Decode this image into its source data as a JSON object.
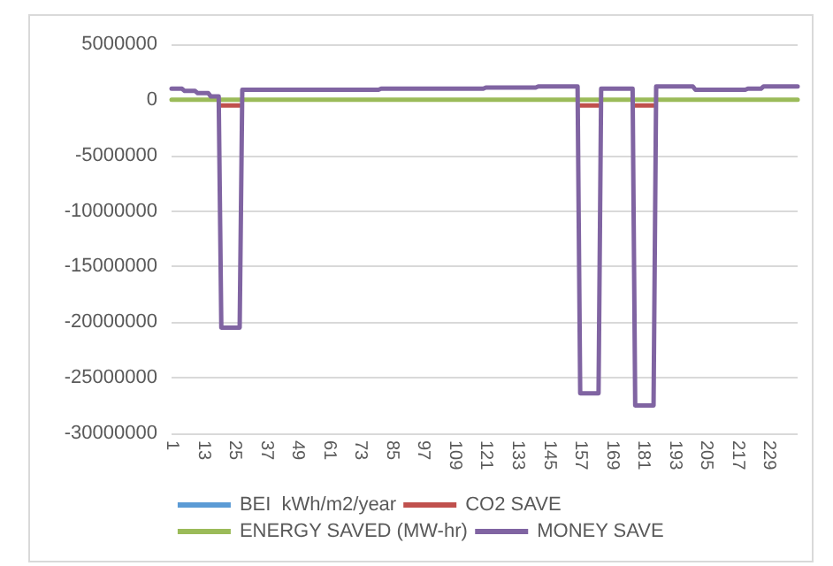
{
  "chart_data": {
    "type": "line",
    "categories": [
      "1",
      null,
      null,
      null,
      null,
      null,
      null,
      null,
      null,
      null,
      null,
      null,
      "13",
      null,
      null,
      null,
      null,
      null,
      null,
      null,
      null,
      null,
      null,
      null,
      "25",
      null,
      null,
      null,
      null,
      null,
      null,
      null,
      null,
      null,
      null,
      null,
      "37",
      null,
      null,
      null,
      null,
      null,
      null,
      null,
      null,
      null,
      null,
      null,
      "49",
      null,
      null,
      null,
      null,
      null,
      null,
      null,
      null,
      null,
      null,
      null,
      "61",
      null,
      null,
      null,
      null,
      null,
      null,
      null,
      null,
      null,
      null,
      null,
      "73",
      null,
      null,
      null,
      null,
      null,
      null,
      null,
      null,
      null,
      null,
      null,
      "85",
      null,
      null,
      null,
      null,
      null,
      null,
      null,
      null,
      null,
      null,
      null,
      "97",
      null,
      null,
      null,
      null,
      null,
      null,
      null,
      null,
      null,
      null,
      null,
      "109",
      null,
      null,
      null,
      null,
      null,
      null,
      null,
      null,
      null,
      null,
      null,
      "121",
      null,
      null,
      null,
      null,
      null,
      null,
      null,
      null,
      null,
      null,
      null,
      "133",
      null,
      null,
      null,
      null,
      null,
      null,
      null,
      null,
      null,
      null,
      null,
      "145",
      null,
      null,
      null,
      null,
      null,
      null,
      null,
      null,
      null,
      null,
      null,
      "157",
      null,
      null,
      null,
      null,
      null,
      null,
      null,
      null,
      null,
      null,
      null,
      "169",
      null,
      null,
      null,
      null,
      null,
      null,
      null,
      null,
      null,
      null,
      null,
      "181",
      null,
      null,
      null,
      null,
      null,
      null,
      null,
      null,
      null,
      null,
      null,
      "193",
      null,
      null,
      null,
      null,
      null,
      null,
      null,
      null,
      null,
      null,
      null,
      "205",
      null,
      null,
      null,
      null,
      null,
      null,
      null,
      null,
      null,
      null,
      null,
      "217",
      null,
      null,
      null,
      null,
      null,
      null,
      null,
      null,
      null,
      null,
      null,
      "229",
      null,
      null,
      null,
      null,
      null,
      null,
      null,
      null,
      null,
      null,
      null
    ],
    "series": [
      {
        "name": "BEI  kWh/m2/year",
        "color": "#5b9bd5",
        "values": [
          null,
          null,
          null,
          null,
          null,
          null,
          null,
          null,
          null,
          null,
          null,
          null,
          null,
          null,
          null,
          null,
          null,
          null,
          null,
          null,
          null,
          null,
          null,
          null,
          null,
          null,
          null,
          null,
          null,
          null,
          null,
          null,
          null,
          null,
          null,
          null,
          null,
          null,
          null,
          null,
          null,
          null,
          null,
          null,
          null,
          null,
          null,
          null,
          null,
          null,
          null,
          null,
          null,
          null,
          null,
          null,
          null,
          null,
          null,
          null,
          null,
          null,
          null,
          null,
          null,
          null,
          null,
          null,
          null,
          null,
          null,
          null,
          null,
          null,
          null,
          null,
          null,
          null,
          null,
          null,
          null,
          null,
          null,
          null,
          null,
          null,
          null,
          null,
          null,
          null,
          null,
          null,
          null,
          null,
          null,
          null,
          null,
          null,
          null,
          null,
          null,
          null,
          null,
          null,
          null,
          null,
          null,
          null,
          null,
          null,
          null,
          null,
          null,
          null,
          null,
          null,
          null,
          null,
          null,
          null,
          null,
          null,
          null,
          null,
          null,
          null,
          null,
          null,
          null,
          null,
          null,
          null,
          null,
          null,
          null,
          null,
          null,
          null,
          null,
          null,
          null,
          null,
          null,
          null,
          null,
          null,
          null,
          null,
          null,
          null,
          null,
          null,
          null,
          null,
          null,
          null,
          null,
          null,
          null,
          null,
          null,
          null,
          null,
          null,
          null,
          null,
          null,
          null,
          null,
          null,
          null,
          null,
          null,
          null,
          null,
          null,
          null,
          null,
          null,
          null,
          null,
          null,
          null,
          null,
          null,
          null,
          null,
          null,
          null,
          null,
          null,
          null,
          null,
          null,
          null,
          null,
          null,
          null,
          null,
          null,
          null,
          null,
          null,
          null,
          null,
          null,
          null,
          null,
          null,
          null,
          null,
          null,
          null,
          null,
          null,
          null,
          null,
          null,
          null,
          null,
          null,
          null,
          null,
          null,
          null,
          null,
          null,
          null,
          null,
          null,
          null,
          null,
          null,
          null,
          null,
          null,
          null,
          null,
          null,
          null
        ]
      },
      {
        "name": "CO2 SAVE",
        "color": "#c0504d",
        "values": [
          null,
          null,
          null,
          null,
          null,
          null,
          null,
          null,
          null,
          null,
          null,
          null,
          null,
          null,
          null,
          null,
          null,
          null,
          null,
          -500000,
          -500000,
          -500000,
          -500000,
          -500000,
          -500000,
          -500000,
          -500000,
          null,
          null,
          null,
          null,
          null,
          null,
          null,
          null,
          null,
          null,
          null,
          null,
          null,
          null,
          null,
          null,
          null,
          null,
          null,
          null,
          null,
          null,
          null,
          null,
          null,
          null,
          null,
          null,
          null,
          null,
          null,
          null,
          null,
          null,
          null,
          null,
          null,
          null,
          null,
          null,
          null,
          null,
          null,
          null,
          null,
          null,
          null,
          null,
          null,
          null,
          null,
          null,
          null,
          null,
          null,
          null,
          null,
          null,
          null,
          null,
          null,
          null,
          null,
          null,
          null,
          null,
          null,
          null,
          null,
          null,
          null,
          null,
          null,
          null,
          null,
          null,
          null,
          null,
          null,
          null,
          null,
          null,
          null,
          null,
          null,
          null,
          null,
          null,
          null,
          null,
          null,
          null,
          null,
          null,
          null,
          null,
          null,
          null,
          null,
          null,
          null,
          null,
          null,
          null,
          null,
          null,
          null,
          null,
          null,
          null,
          null,
          null,
          null,
          null,
          null,
          null,
          null,
          null,
          null,
          null,
          null,
          null,
          null,
          null,
          null,
          null,
          null,
          null,
          null,
          -500000,
          -500000,
          -500000,
          -500000,
          -500000,
          -500000,
          -500000,
          -500000,
          null,
          null,
          null,
          null,
          null,
          null,
          null,
          null,
          null,
          null,
          null,
          null,
          null,
          -500000,
          -500000,
          -500000,
          -500000,
          -500000,
          -500000,
          -500000,
          -500000,
          null,
          null,
          null,
          null,
          null,
          null,
          null,
          null,
          null,
          null,
          null,
          null,
          null,
          null,
          null,
          null,
          null,
          null,
          null,
          null,
          null,
          null,
          null,
          null,
          null,
          null,
          null,
          null,
          null,
          null,
          null,
          null,
          null,
          null,
          null,
          null,
          null,
          null,
          null,
          null,
          null,
          null,
          null,
          null,
          null,
          null,
          null,
          null,
          null,
          null,
          null,
          null,
          null,
          null,
          null
        ]
      },
      {
        "name": "ENERGY SAVED (MW-hr)",
        "color": "#9bbb59",
        "values": [
          0,
          0,
          0,
          0,
          0,
          0,
          0,
          0,
          0,
          0,
          0,
          0,
          0,
          0,
          0,
          0,
          0,
          0,
          0,
          0,
          0,
          0,
          0,
          0,
          0,
          0,
          0,
          0,
          0,
          0,
          0,
          0,
          0,
          0,
          0,
          0,
          0,
          0,
          0,
          0,
          0,
          0,
          0,
          0,
          0,
          0,
          0,
          0,
          0,
          0,
          0,
          0,
          0,
          0,
          0,
          0,
          0,
          0,
          0,
          0,
          0,
          0,
          0,
          0,
          0,
          0,
          0,
          0,
          0,
          0,
          0,
          0,
          0,
          0,
          0,
          0,
          0,
          0,
          0,
          0,
          0,
          0,
          0,
          0,
          0,
          0,
          0,
          0,
          0,
          0,
          0,
          0,
          0,
          0,
          0,
          0,
          0,
          0,
          0,
          0,
          0,
          0,
          0,
          0,
          0,
          0,
          0,
          0,
          0,
          0,
          0,
          0,
          0,
          0,
          0,
          0,
          0,
          0,
          0,
          0,
          0,
          0,
          0,
          0,
          0,
          0,
          0,
          0,
          0,
          0,
          0,
          0,
          0,
          0,
          0,
          0,
          0,
          0,
          0,
          0,
          0,
          0,
          0,
          0,
          0,
          0,
          0,
          0,
          0,
          0,
          0,
          0,
          0,
          0,
          0,
          0,
          0,
          0,
          0,
          0,
          0,
          0,
          0,
          0,
          0,
          0,
          0,
          0,
          0,
          0,
          0,
          0,
          0,
          0,
          0,
          0,
          0,
          0,
          0,
          0,
          0,
          0,
          0,
          0,
          0,
          0,
          0,
          0,
          0,
          0,
          0,
          0,
          0,
          0,
          0,
          0,
          0,
          0,
          0,
          0,
          0,
          0,
          0,
          0,
          0,
          0,
          0,
          0,
          0,
          0,
          0,
          0,
          0,
          0,
          0,
          0,
          0,
          0,
          0,
          0,
          0,
          0,
          0,
          0,
          0,
          0,
          0,
          0,
          0,
          0,
          0,
          0,
          0,
          0,
          0,
          0,
          0,
          0,
          0,
          0
        ]
      },
      {
        "name": "MONEY SAVE",
        "color": "#8064a2",
        "values": [
          1000000,
          1000000,
          1000000,
          1000000,
          1000000,
          800000,
          800000,
          800000,
          800000,
          800000,
          600000,
          600000,
          600000,
          600000,
          600000,
          300000,
          300000,
          300000,
          300000,
          -20500000,
          -20500000,
          -20500000,
          -20500000,
          -20500000,
          -20500000,
          -20500000,
          -20500000,
          900000,
          900000,
          900000,
          900000,
          900000,
          900000,
          900000,
          900000,
          900000,
          900000,
          900000,
          900000,
          900000,
          900000,
          900000,
          900000,
          900000,
          900000,
          900000,
          900000,
          900000,
          900000,
          900000,
          900000,
          900000,
          900000,
          900000,
          900000,
          900000,
          900000,
          900000,
          900000,
          900000,
          900000,
          900000,
          900000,
          900000,
          900000,
          900000,
          900000,
          900000,
          900000,
          900000,
          900000,
          900000,
          900000,
          900000,
          900000,
          900000,
          900000,
          900000,
          900000,
          900000,
          1000000,
          1000000,
          1000000,
          1000000,
          1000000,
          1000000,
          1000000,
          1000000,
          1000000,
          1000000,
          1000000,
          1000000,
          1000000,
          1000000,
          1000000,
          1000000,
          1000000,
          1000000,
          1000000,
          1000000,
          1000000,
          1000000,
          1000000,
          1000000,
          1000000,
          1000000,
          1000000,
          1000000,
          1000000,
          1000000,
          1000000,
          1000000,
          1000000,
          1000000,
          1000000,
          1000000,
          1000000,
          1000000,
          1000000,
          1000000,
          1100000,
          1100000,
          1100000,
          1100000,
          1100000,
          1100000,
          1100000,
          1100000,
          1100000,
          1100000,
          1100000,
          1100000,
          1100000,
          1100000,
          1100000,
          1100000,
          1100000,
          1100000,
          1100000,
          1100000,
          1200000,
          1200000,
          1200000,
          1200000,
          1200000,
          1200000,
          1200000,
          1200000,
          1200000,
          1200000,
          1200000,
          1200000,
          1200000,
          1200000,
          1200000,
          1200000,
          -26400000,
          -26400000,
          -26400000,
          -26400000,
          -26400000,
          -26400000,
          -26400000,
          -26400000,
          1000000,
          1000000,
          1000000,
          1000000,
          1000000,
          1000000,
          1000000,
          1000000,
          1000000,
          1000000,
          1000000,
          1000000,
          1000000,
          -27500000,
          -27500000,
          -27500000,
          -27500000,
          -27500000,
          -27500000,
          -27500000,
          -27500000,
          1200000,
          1200000,
          1200000,
          1200000,
          1200000,
          1200000,
          1200000,
          1200000,
          1200000,
          1200000,
          1200000,
          1200000,
          1200000,
          1200000,
          1200000,
          900000,
          900000,
          900000,
          900000,
          900000,
          900000,
          900000,
          900000,
          900000,
          900000,
          900000,
          900000,
          900000,
          900000,
          900000,
          900000,
          900000,
          900000,
          900000,
          900000,
          1000000,
          1000000,
          1000000,
          1000000,
          1000000,
          1000000,
          1200000,
          1200000,
          1200000,
          1200000,
          1200000,
          1200000,
          1200000,
          1200000,
          1200000,
          1200000,
          1200000,
          1200000,
          1200000,
          1200000
        ]
      }
    ],
    "ylim": [
      -30000000,
      5000000
    ],
    "yticks": [
      -30000000,
      -25000000,
      -20000000,
      -15000000,
      -10000000,
      -5000000,
      0,
      5000000
    ],
    "grid": "y",
    "legend": "bottom"
  }
}
